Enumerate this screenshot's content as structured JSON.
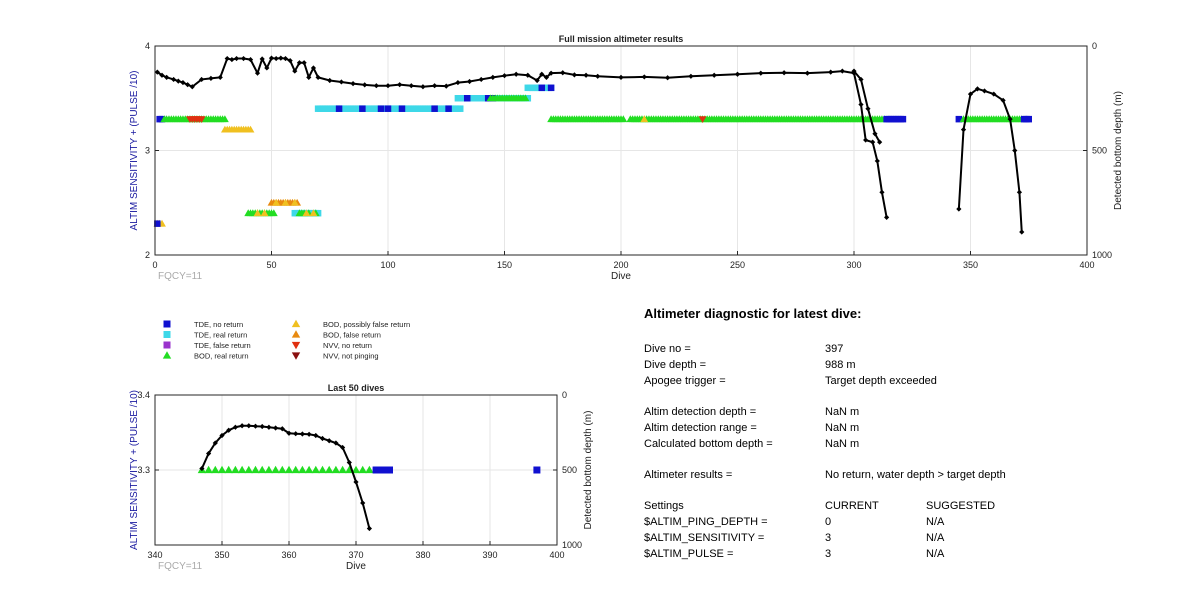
{
  "colors": {
    "tde_no_return": "#1010d0",
    "tde_real_return": "#3ed8e8",
    "tde_false_return": "#9a33cc",
    "bod_real_return": "#22dd22",
    "bod_possibly_false_return": "#f0c020",
    "bod_false_return": "#e88a10",
    "nvv_no_return": "#e03010",
    "nvv_not_pinging": "#8a1010",
    "depth_line": "#000000",
    "left_axis": "#1a1aa0",
    "fqcy": "#aaaaaa"
  },
  "legend": {
    "items": [
      {
        "label": "TDE, no return",
        "marker": "square",
        "color_key": "tde_no_return"
      },
      {
        "label": "TDE, real return",
        "marker": "square",
        "color_key": "tde_real_return"
      },
      {
        "label": "TDE, false return",
        "marker": "square",
        "color_key": "tde_false_return"
      },
      {
        "label": "BOD, real return",
        "marker": "triangle-up",
        "color_key": "bod_real_return"
      },
      {
        "label": "BOD, possibly false return",
        "marker": "triangle-up",
        "color_key": "bod_possibly_false_return"
      },
      {
        "label": "BOD, false return",
        "marker": "triangle-up",
        "color_key": "bod_false_return"
      },
      {
        "label": "NVV, no return",
        "marker": "triangle-down",
        "color_key": "nvv_no_return"
      },
      {
        "label": "NVV, not pinging",
        "marker": "triangle-down",
        "color_key": "nvv_not_pinging"
      }
    ]
  },
  "chart_data": [
    {
      "type": "scatter",
      "title": "Full mission altimeter results",
      "xlabel": "Dive",
      "ylabel": "ALTIM SENSITIVITY + (PULSE /10)",
      "y2label": "Detected bottom depth (m)",
      "annotation": "FQCY=11",
      "xlim": [
        0,
        400
      ],
      "ylim": [
        2,
        4
      ],
      "y2lim": [
        0,
        1000
      ],
      "y2_reversed": true,
      "grid": true,
      "xticks": [
        "0",
        "50",
        "100",
        "150",
        "200",
        "250",
        "300",
        "350",
        "400"
      ],
      "yticks": [
        "2",
        "3",
        "4"
      ],
      "y2ticks": [
        "0",
        "500",
        "1000"
      ],
      "marker_runs": [
        {
          "color_key": "tde_no_return",
          "marker": "square",
          "y": 3.3,
          "x_start": 2,
          "x_end": 3,
          "step": 1
        },
        {
          "color_key": "bod_real_return",
          "marker": "triangle-up",
          "y": 3.3,
          "x_start": 4,
          "x_end": 30,
          "step": 1
        },
        {
          "color_key": "nvv_no_return",
          "marker": "triangle-down",
          "y": 3.3,
          "x_start": 15,
          "x_end": 20,
          "step": 1
        },
        {
          "color_key": "bod_possibly_false_return",
          "marker": "triangle-up",
          "y": 3.2,
          "x_start": 30,
          "x_end": 41,
          "step": 1
        },
        {
          "color_key": "tde_real_return",
          "marker": "square",
          "y": 3.4,
          "x_start": 70,
          "x_end": 131,
          "step": 1
        },
        {
          "color_key": "tde_no_return",
          "marker": "square",
          "x": [
            79,
            89,
            97,
            100,
            106,
            120,
            126
          ],
          "y": 3.4
        },
        {
          "color_key": "tde_real_return",
          "marker": "square",
          "y": 3.5,
          "x_start": 130,
          "x_end": 160,
          "step": 1
        },
        {
          "color_key": "tde_no_return",
          "marker": "square",
          "x": [
            134,
            143,
            145
          ],
          "y": 3.5
        },
        {
          "color_key": "bod_real_return",
          "marker": "triangle-up",
          "y": 3.5,
          "x_start": 144,
          "x_end": 159,
          "step": 1
        },
        {
          "color_key": "tde_real_return",
          "marker": "square",
          "y": 3.6,
          "x_start": 160,
          "x_end": 170,
          "step": 1
        },
        {
          "color_key": "tde_no_return",
          "marker": "square",
          "x": [
            166,
            170
          ],
          "y": 3.6
        },
        {
          "color_key": "bod_real_return",
          "marker": "triangle-up",
          "y": 3.3,
          "x_start": 170,
          "x_end": 201,
          "step": 1
        },
        {
          "color_key": "bod_real_return",
          "marker": "triangle-up",
          "y": 3.3,
          "x_start": 204,
          "x_end": 313,
          "step": 1
        },
        {
          "color_key": "bod_possibly_false_return",
          "marker": "triangle-up",
          "x": [
            210
          ],
          "y": 3.3
        },
        {
          "color_key": "nvv_no_return",
          "marker": "triangle-down",
          "x": [
            235
          ],
          "y": 3.3
        },
        {
          "color_key": "tde_no_return",
          "marker": "square",
          "y": 3.3,
          "x_start": 314,
          "x_end": 321,
          "step": 1
        },
        {
          "color_key": "tde_no_return",
          "marker": "square",
          "x": [
            345
          ],
          "y": 3.3
        },
        {
          "color_key": "bod_real_return",
          "marker": "triangle-up",
          "y": 3.3,
          "x_start": 347,
          "x_end": 372,
          "step": 1
        },
        {
          "color_key": "tde_no_return",
          "marker": "square",
          "y": 3.3,
          "x_start": 373,
          "x_end": 375,
          "step": 1
        },
        {
          "color_key": "bod_possibly_false_return",
          "marker": "triangle-up",
          "x": [
            1,
            2,
            3
          ],
          "y": 2.3
        },
        {
          "color_key": "tde_no_return",
          "marker": "square",
          "x": [
            1
          ],
          "y": 2.3
        },
        {
          "color_key": "bod_false_return",
          "marker": "triangle-up",
          "y": 2.5,
          "x_start": 50,
          "x_end": 61,
          "step": 1
        },
        {
          "color_key": "bod_possibly_false_return",
          "marker": "triangle-up",
          "x": [
            52,
            56,
            60
          ],
          "y": 2.5
        },
        {
          "color_key": "bod_real_return",
          "marker": "triangle-up",
          "y": 2.4,
          "x_start": 40,
          "x_end": 51,
          "step": 1
        },
        {
          "color_key": "bod_possibly_false_return",
          "marker": "triangle-up",
          "x": [
            44,
            47
          ],
          "y": 2.4
        },
        {
          "color_key": "tde_real_return",
          "marker": "square",
          "y": 2.4,
          "x_start": 60,
          "x_end": 70,
          "step": 1
        },
        {
          "color_key": "bod_real_return",
          "marker": "triangle-up",
          "x": [
            62,
            63,
            64,
            66,
            69
          ],
          "y": 2.4
        },
        {
          "color_key": "bod_possibly_false_return",
          "marker": "triangle-up",
          "x": [
            65,
            68
          ],
          "y": 2.4
        }
      ],
      "depth_series": {
        "name": "Detected bottom depth",
        "x": [
          1,
          3,
          5,
          8,
          10,
          12,
          14,
          16,
          20,
          24,
          28,
          31,
          33,
          35,
          38,
          41,
          44,
          46,
          48,
          50,
          52,
          54,
          56,
          58,
          60,
          62,
          64,
          66,
          68,
          70,
          75,
          80,
          85,
          90,
          95,
          100,
          105,
          110,
          115,
          120,
          125,
          130,
          135,
          140,
          145,
          150,
          155,
          160,
          164,
          166,
          168,
          170,
          175,
          180,
          185,
          190,
          200,
          210,
          220,
          230,
          240,
          250,
          260,
          270,
          280,
          290,
          295,
          300,
          303,
          305,
          308,
          310,
          312,
          314
        ],
        "y": [
          125,
          140,
          150,
          160,
          168,
          175,
          185,
          195,
          160,
          155,
          150,
          60,
          65,
          60,
          60,
          65,
          130,
          62,
          105,
          58,
          60,
          58,
          60,
          70,
          120,
          80,
          80,
          150,
          105,
          150,
          165,
          172,
          180,
          186,
          190,
          190,
          185,
          190,
          195,
          190,
          192,
          175,
          170,
          160,
          150,
          142,
          135,
          140,
          165,
          135,
          150,
          130,
          128,
          138,
          140,
          145,
          150,
          148,
          152,
          145,
          140,
          135,
          130,
          128,
          130,
          125,
          120,
          130,
          280,
          450,
          460,
          550,
          700,
          820
        ]
      },
      "depth_series_2": {
        "name": "Detected bottom depth (second segment)",
        "x": [
          300,
          303,
          306,
          309,
          311
        ],
        "y": [
          120,
          160,
          300,
          420,
          460
        ]
      },
      "depth_series_3": {
        "name": "Detected bottom depth (late dives)",
        "x": [
          345,
          347,
          350,
          353,
          356,
          360,
          364,
          367,
          369,
          371,
          372
        ],
        "y": [
          780,
          400,
          230,
          205,
          215,
          230,
          260,
          350,
          500,
          700,
          890
        ]
      }
    },
    {
      "type": "scatter",
      "title": "Last 50 dives",
      "xlabel": "Dive",
      "ylabel": "ALTIM SENSITIVITY + (PULSE /10)",
      "y2label": "Detected bottom depth (m)",
      "annotation": "FQCY=11",
      "xlim": [
        340,
        400
      ],
      "ylim": [
        3.2,
        3.4
      ],
      "y2lim": [
        0,
        1000
      ],
      "y2_reversed": true,
      "grid": true,
      "xticks": [
        "340",
        "350",
        "360",
        "370",
        "380",
        "390",
        "400"
      ],
      "yticks": [
        "3.3",
        "3.4"
      ],
      "y2ticks": [
        "0",
        "500",
        "1000"
      ],
      "marker_runs": [
        {
          "color_key": "bod_real_return",
          "marker": "triangle-up",
          "y": 3.3,
          "x_start": 347,
          "x_end": 372,
          "step": 1
        },
        {
          "color_key": "tde_no_return",
          "marker": "square",
          "y": 3.3,
          "x_start": 373,
          "x_end": 375,
          "step": 1
        },
        {
          "color_key": "tde_no_return",
          "marker": "square",
          "x": [
            397
          ],
          "y": 3.3
        }
      ],
      "depth_series": {
        "name": "Detected bottom depth",
        "x": [
          347,
          348,
          349,
          350,
          351,
          352,
          353,
          354,
          355,
          356,
          357,
          358,
          359,
          360,
          361,
          362,
          363,
          364,
          365,
          366,
          367,
          368,
          369,
          370,
          371,
          372
        ],
        "y": [
          490,
          390,
          320,
          270,
          235,
          215,
          205,
          205,
          208,
          210,
          215,
          220,
          225,
          255,
          258,
          260,
          262,
          270,
          290,
          305,
          320,
          350,
          450,
          580,
          720,
          890
        ]
      }
    }
  ],
  "diagnostic": {
    "title": "Altimeter diagnostic for latest dive:",
    "rows": [
      {
        "label": "Dive no =",
        "value": "397"
      },
      {
        "label": "Dive depth =",
        "value": "988 m"
      },
      {
        "label": "Apogee trigger =",
        "value": "Target depth exceeded"
      },
      null,
      {
        "label": "Altim detection depth =",
        "value": "NaN m"
      },
      {
        "label": "Altim detection range =",
        "value": "NaN m"
      },
      {
        "label": "Calculated bottom depth =",
        "value": "NaN m"
      },
      null,
      {
        "label": "Altimeter results =",
        "value": "No return, water depth > target depth"
      },
      null
    ],
    "settings": {
      "header": {
        "label": "Settings",
        "current": "CURRENT",
        "suggested": "SUGGESTED"
      },
      "rows": [
        {
          "label": "$ALTIM_PING_DEPTH =",
          "current": "0",
          "suggested": "N/A"
        },
        {
          "label": "$ALTIM_SENSITIVITY =",
          "current": "3",
          "suggested": "N/A"
        },
        {
          "label": "$ALTIM_PULSE =",
          "current": "3",
          "suggested": "N/A"
        }
      ]
    }
  }
}
